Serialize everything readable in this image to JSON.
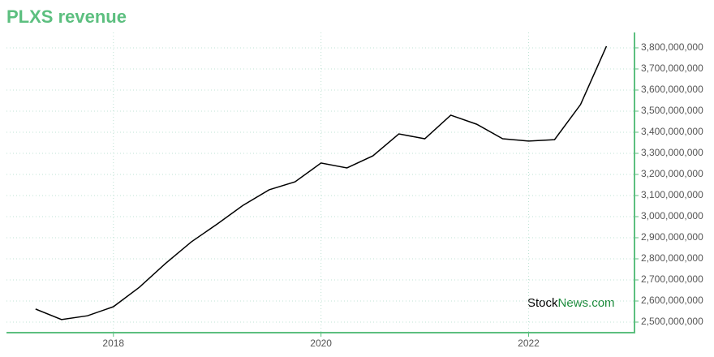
{
  "chart_data": {
    "type": "line",
    "title": "PLXS revenue",
    "x": [
      2017.25,
      2017.5,
      2017.75,
      2018.0,
      2018.25,
      2018.5,
      2018.75,
      2019.0,
      2019.25,
      2019.5,
      2019.75,
      2020.0,
      2020.25,
      2020.5,
      2020.75,
      2021.0,
      2021.25,
      2021.5,
      2021.75,
      2022.0,
      2022.25,
      2022.5,
      2022.75
    ],
    "series": [
      {
        "name": "PLXS revenue",
        "color": "#000000",
        "values": [
          2562000000,
          2512000000,
          2530000000,
          2573000000,
          2665000000,
          2777000000,
          2880000000,
          2965000000,
          3054000000,
          3127000000,
          3165000000,
          3254000000,
          3231000000,
          3288000000,
          3392000000,
          3369000000,
          3481000000,
          3438000000,
          3369000000,
          3358000000,
          3365000000,
          3531000000,
          3808000000
        ]
      }
    ],
    "xlim": [
      2016.97,
      2023.02
    ],
    "xticks": [
      2018,
      2020,
      2022
    ],
    "ylim": [
      2450000000,
      3873000000
    ],
    "yticks": [
      {
        "value": 2500000000,
        "label": "2,500,000,000"
      },
      {
        "value": 2600000000,
        "label": "2,600,000,000"
      },
      {
        "value": 2700000000,
        "label": "2,700,000,000"
      },
      {
        "value": 2800000000,
        "label": "2,800,000,000"
      },
      {
        "value": 2900000000,
        "label": "2,900,000,000"
      },
      {
        "value": 3000000000,
        "label": "3,000,000,000"
      },
      {
        "value": 3100000000,
        "label": "3,100,000,000"
      },
      {
        "value": 3200000000,
        "label": "3,200,000,000"
      },
      {
        "value": 3300000000,
        "label": "3,300,000,000"
      },
      {
        "value": 3400000000,
        "label": "3,400,000,000"
      },
      {
        "value": 3500000000,
        "label": "3,500,000,000"
      },
      {
        "value": 3600000000,
        "label": "3,600,000,000"
      },
      {
        "value": 3700000000,
        "label": "3,700,000,000"
      },
      {
        "value": 3800000000,
        "label": "3,800,000,000"
      }
    ],
    "y_axis_side": "right",
    "grid": true,
    "watermark": [
      "Stock",
      "News.com"
    ]
  }
}
